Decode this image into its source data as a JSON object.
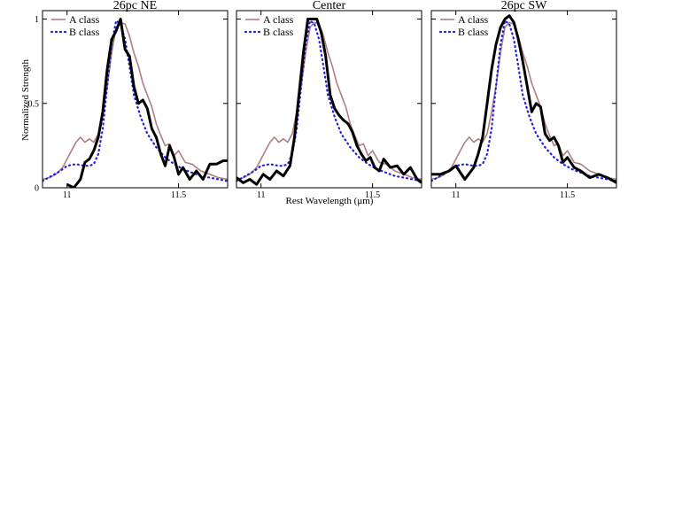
{
  "figure": {
    "ylabel": "Normalized Strength",
    "xlabel": "Rest Wavelength (μm)"
  },
  "colors": {
    "a_class": "#b07e80",
    "b_class": "#1f1fe6",
    "observed": "#000000"
  },
  "chart_data": [
    {
      "type": "line",
      "title": "26pc NE",
      "xlim": [
        10.89,
        11.72
      ],
      "ylim": [
        0,
        1.05
      ],
      "xticks": [
        11,
        11.5
      ],
      "xtick_labels": [
        "11",
        "11.5"
      ],
      "yticks": [
        0,
        0.5,
        1
      ],
      "ytick_labels": [
        "0",
        "0.5",
        "1"
      ],
      "legend": {
        "position": "top-left"
      },
      "series": [
        {
          "name": "A class",
          "key": "a_class",
          "x": [
            10.89,
            10.92,
            10.95,
            10.98,
            11.0,
            11.02,
            11.04,
            11.06,
            11.08,
            11.1,
            11.12,
            11.14,
            11.16,
            11.18,
            11.2,
            11.22,
            11.24,
            11.26,
            11.28,
            11.3,
            11.32,
            11.34,
            11.36,
            11.38,
            11.4,
            11.42,
            11.44,
            11.46,
            11.48,
            11.5,
            11.53,
            11.56,
            11.6,
            11.64,
            11.68,
            11.72
          ],
          "y": [
            0.05,
            0.06,
            0.08,
            0.12,
            0.17,
            0.22,
            0.27,
            0.3,
            0.27,
            0.29,
            0.27,
            0.32,
            0.45,
            0.6,
            0.8,
            0.95,
            0.98,
            0.97,
            0.9,
            0.8,
            0.72,
            0.62,
            0.55,
            0.48,
            0.38,
            0.31,
            0.25,
            0.26,
            0.19,
            0.22,
            0.15,
            0.14,
            0.1,
            0.08,
            0.06,
            0.05
          ]
        },
        {
          "name": "B class",
          "key": "b_class",
          "x": [
            10.89,
            10.93,
            10.97,
            11.0,
            11.04,
            11.08,
            11.1,
            11.12,
            11.14,
            11.16,
            11.18,
            11.2,
            11.22,
            11.24,
            11.26,
            11.28,
            11.3,
            11.33,
            11.36,
            11.4,
            11.44,
            11.48,
            11.52,
            11.56,
            11.6,
            11.64,
            11.68,
            11.72
          ],
          "y": [
            0.04,
            0.07,
            0.1,
            0.13,
            0.14,
            0.13,
            0.13,
            0.14,
            0.2,
            0.35,
            0.6,
            0.85,
            0.99,
            0.97,
            0.88,
            0.72,
            0.55,
            0.42,
            0.32,
            0.24,
            0.18,
            0.14,
            0.11,
            0.09,
            0.07,
            0.06,
            0.05,
            0.04
          ]
        },
        {
          "name": "",
          "key": "observed",
          "x": [
            11.0,
            11.03,
            11.06,
            11.08,
            11.1,
            11.12,
            11.14,
            11.16,
            11.18,
            11.2,
            11.22,
            11.24,
            11.26,
            11.28,
            11.3,
            11.32,
            11.34,
            11.36,
            11.38,
            11.4,
            11.42,
            11.44,
            11.46,
            11.48,
            11.5,
            11.52,
            11.55,
            11.58,
            11.61,
            11.64,
            11.67,
            11.7,
            11.72
          ],
          "y": [
            0.02,
            0.0,
            0.05,
            0.15,
            0.17,
            0.22,
            0.3,
            0.45,
            0.7,
            0.88,
            0.93,
            1.0,
            0.82,
            0.78,
            0.6,
            0.5,
            0.52,
            0.47,
            0.35,
            0.3,
            0.2,
            0.13,
            0.25,
            0.18,
            0.08,
            0.12,
            0.05,
            0.1,
            0.05,
            0.14,
            0.14,
            0.16,
            0.16
          ]
        }
      ]
    },
    {
      "type": "line",
      "title": "Center",
      "xlim": [
        10.89,
        11.72
      ],
      "ylim": [
        0,
        1.05
      ],
      "xticks": [
        11,
        11.5
      ],
      "xtick_labels": [
        "11",
        "11.5"
      ],
      "yticks": [
        0,
        0.5,
        1
      ],
      "ytick_labels": [
        "",
        "",
        ""
      ],
      "legend": {
        "position": "top-left"
      },
      "series": [
        {
          "name": "A class",
          "key": "a_class",
          "x": [
            10.89,
            10.92,
            10.95,
            10.98,
            11.0,
            11.02,
            11.04,
            11.06,
            11.08,
            11.1,
            11.12,
            11.14,
            11.16,
            11.18,
            11.2,
            11.22,
            11.24,
            11.26,
            11.28,
            11.3,
            11.32,
            11.34,
            11.36,
            11.38,
            11.4,
            11.42,
            11.44,
            11.46,
            11.48,
            11.5,
            11.53,
            11.56,
            11.6,
            11.64,
            11.68,
            11.72
          ],
          "y": [
            0.05,
            0.06,
            0.08,
            0.12,
            0.17,
            0.22,
            0.27,
            0.3,
            0.27,
            0.29,
            0.27,
            0.32,
            0.45,
            0.6,
            0.8,
            0.95,
            0.98,
            0.97,
            0.9,
            0.8,
            0.72,
            0.62,
            0.55,
            0.48,
            0.38,
            0.31,
            0.25,
            0.26,
            0.19,
            0.22,
            0.15,
            0.14,
            0.1,
            0.08,
            0.06,
            0.05
          ]
        },
        {
          "name": "B class",
          "key": "b_class",
          "x": [
            10.89,
            10.93,
            10.97,
            11.0,
            11.04,
            11.08,
            11.1,
            11.12,
            11.14,
            11.16,
            11.18,
            11.2,
            11.22,
            11.24,
            11.26,
            11.28,
            11.3,
            11.33,
            11.36,
            11.4,
            11.44,
            11.48,
            11.52,
            11.56,
            11.6,
            11.64,
            11.68,
            11.72
          ],
          "y": [
            0.04,
            0.07,
            0.1,
            0.13,
            0.14,
            0.13,
            0.13,
            0.14,
            0.2,
            0.35,
            0.6,
            0.85,
            0.99,
            0.97,
            0.88,
            0.72,
            0.55,
            0.42,
            0.32,
            0.24,
            0.18,
            0.14,
            0.11,
            0.09,
            0.07,
            0.06,
            0.05,
            0.04
          ]
        },
        {
          "name": "",
          "key": "observed",
          "x": [
            10.89,
            10.92,
            10.95,
            10.98,
            11.01,
            11.04,
            11.07,
            11.1,
            11.13,
            11.15,
            11.17,
            11.19,
            11.21,
            11.23,
            11.25,
            11.27,
            11.29,
            11.31,
            11.33,
            11.35,
            11.37,
            11.39,
            11.41,
            11.43,
            11.45,
            11.47,
            11.49,
            11.51,
            11.53,
            11.55,
            11.58,
            11.61,
            11.64,
            11.67,
            11.7,
            11.72
          ],
          "y": [
            0.06,
            0.03,
            0.05,
            0.02,
            0.08,
            0.05,
            0.1,
            0.07,
            0.13,
            0.3,
            0.55,
            0.8,
            1.0,
            1.0,
            1.0,
            0.92,
            0.78,
            0.55,
            0.47,
            0.43,
            0.4,
            0.38,
            0.33,
            0.25,
            0.2,
            0.16,
            0.18,
            0.12,
            0.1,
            0.17,
            0.12,
            0.13,
            0.08,
            0.12,
            0.05,
            0.03
          ]
        }
      ]
    },
    {
      "type": "line",
      "title": "26pc SW",
      "xlim": [
        10.89,
        11.72
      ],
      "ylim": [
        0,
        1.05
      ],
      "xticks": [
        11,
        11.5
      ],
      "xtick_labels": [
        "11",
        "11.5"
      ],
      "yticks": [
        0,
        0.5,
        1
      ],
      "ytick_labels": [
        "",
        "",
        ""
      ],
      "legend": {
        "position": "top-left"
      },
      "series": [
        {
          "name": "A class",
          "key": "a_class",
          "x": [
            10.89,
            10.92,
            10.95,
            10.98,
            11.0,
            11.02,
            11.04,
            11.06,
            11.08,
            11.1,
            11.12,
            11.14,
            11.16,
            11.18,
            11.2,
            11.22,
            11.24,
            11.26,
            11.28,
            11.3,
            11.32,
            11.34,
            11.36,
            11.38,
            11.4,
            11.42,
            11.44,
            11.46,
            11.48,
            11.5,
            11.53,
            11.56,
            11.6,
            11.64,
            11.68,
            11.72
          ],
          "y": [
            0.05,
            0.06,
            0.08,
            0.12,
            0.17,
            0.22,
            0.27,
            0.3,
            0.27,
            0.29,
            0.27,
            0.32,
            0.45,
            0.6,
            0.8,
            0.95,
            0.98,
            0.97,
            0.9,
            0.8,
            0.72,
            0.62,
            0.55,
            0.48,
            0.38,
            0.31,
            0.25,
            0.26,
            0.19,
            0.22,
            0.15,
            0.14,
            0.1,
            0.08,
            0.06,
            0.05
          ]
        },
        {
          "name": "B class",
          "key": "b_class",
          "x": [
            10.89,
            10.93,
            10.97,
            11.0,
            11.04,
            11.08,
            11.1,
            11.12,
            11.14,
            11.16,
            11.18,
            11.2,
            11.22,
            11.24,
            11.26,
            11.28,
            11.3,
            11.33,
            11.36,
            11.4,
            11.44,
            11.48,
            11.52,
            11.56,
            11.6,
            11.64,
            11.68,
            11.72
          ],
          "y": [
            0.04,
            0.07,
            0.1,
            0.13,
            0.14,
            0.13,
            0.13,
            0.14,
            0.2,
            0.35,
            0.6,
            0.85,
            0.99,
            0.97,
            0.88,
            0.72,
            0.55,
            0.42,
            0.32,
            0.24,
            0.18,
            0.14,
            0.11,
            0.09,
            0.07,
            0.06,
            0.05,
            0.04
          ]
        },
        {
          "name": "",
          "key": "observed",
          "x": [
            10.89,
            10.93,
            10.97,
            11.0,
            11.04,
            11.08,
            11.1,
            11.12,
            11.14,
            11.16,
            11.18,
            11.2,
            11.22,
            11.24,
            11.26,
            11.28,
            11.3,
            11.32,
            11.34,
            11.36,
            11.38,
            11.4,
            11.42,
            11.44,
            11.46,
            11.48,
            11.5,
            11.53,
            11.56,
            11.6,
            11.64,
            11.68,
            11.72
          ],
          "y": [
            0.08,
            0.08,
            0.1,
            0.13,
            0.05,
            0.12,
            0.2,
            0.3,
            0.5,
            0.7,
            0.85,
            0.95,
            1.0,
            1.02,
            0.98,
            0.88,
            0.75,
            0.6,
            0.45,
            0.5,
            0.48,
            0.32,
            0.28,
            0.3,
            0.25,
            0.15,
            0.18,
            0.12,
            0.1,
            0.06,
            0.08,
            0.06,
            0.03
          ]
        }
      ]
    }
  ]
}
